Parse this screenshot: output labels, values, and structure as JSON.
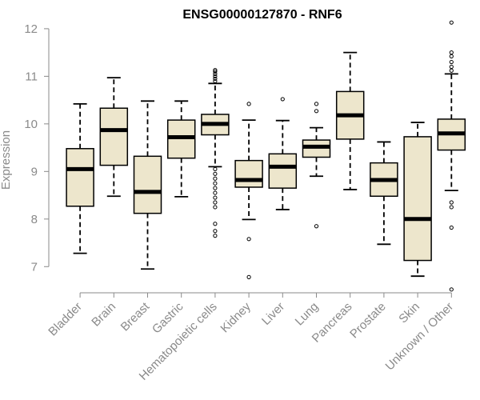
{
  "chart_data": {
    "type": "boxplot",
    "title": "ENSG00000127870 - RNF6",
    "xlabel": "",
    "ylabel": "Expression",
    "ylim": [
      6.45,
      12.2
    ],
    "yticks": [
      7,
      8,
      9,
      10,
      11,
      12
    ],
    "box_fill": "#ede6cc",
    "categories": [
      "Bladder",
      "Brain",
      "Breast",
      "Gastric",
      "Hematopoietic cells",
      "Kidney",
      "Liver",
      "Lung",
      "Pancreas",
      "Prostate",
      "Skin",
      "Unknown / Other"
    ],
    "boxes": [
      {
        "min": 7.28,
        "q1": 8.27,
        "median": 9.05,
        "q3": 9.48,
        "max": 10.42,
        "outliers": []
      },
      {
        "min": 8.48,
        "q1": 9.13,
        "median": 9.87,
        "q3": 10.33,
        "max": 10.97,
        "outliers": []
      },
      {
        "min": 6.95,
        "q1": 8.12,
        "median": 8.57,
        "q3": 9.32,
        "max": 10.48,
        "outliers": []
      },
      {
        "min": 8.47,
        "q1": 9.28,
        "median": 9.72,
        "q3": 10.08,
        "max": 10.48,
        "outliers": []
      },
      {
        "min": 9.1,
        "q1": 9.77,
        "median": 10.0,
        "q3": 10.2,
        "max": 10.85,
        "outliers": [
          10.9,
          10.95,
          11.0,
          11.05,
          11.1,
          11.13,
          9.05,
          8.95,
          8.85,
          8.75,
          8.65,
          8.55,
          8.45,
          8.35,
          8.25,
          7.9,
          7.75,
          7.65
        ]
      },
      {
        "min": 7.99,
        "q1": 8.67,
        "median": 8.82,
        "q3": 9.23,
        "max": 10.08,
        "outliers": [
          10.42,
          7.58,
          6.78
        ]
      },
      {
        "min": 8.2,
        "q1": 8.65,
        "median": 9.1,
        "q3": 9.37,
        "max": 10.07,
        "outliers": [
          10.52
        ]
      },
      {
        "min": 8.9,
        "q1": 9.3,
        "median": 9.52,
        "q3": 9.66,
        "max": 9.92,
        "outliers": [
          10.42,
          10.27,
          7.85
        ]
      },
      {
        "min": 8.62,
        "q1": 9.68,
        "median": 10.18,
        "q3": 10.68,
        "max": 11.5,
        "outliers": []
      },
      {
        "min": 7.47,
        "q1": 8.48,
        "median": 8.82,
        "q3": 9.18,
        "max": 9.62,
        "outliers": []
      },
      {
        "min": 6.8,
        "q1": 7.13,
        "median": 8.0,
        "q3": 9.73,
        "max": 10.03,
        "outliers": []
      },
      {
        "min": 8.6,
        "q1": 9.45,
        "median": 9.8,
        "q3": 10.1,
        "max": 11.05,
        "outliers": [
          12.13,
          11.5,
          11.42,
          11.3,
          11.2,
          11.12,
          8.35,
          8.25,
          7.82,
          6.52
        ]
      }
    ]
  }
}
